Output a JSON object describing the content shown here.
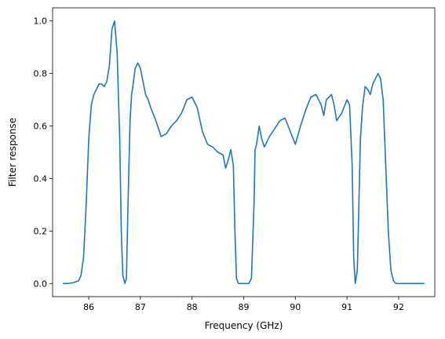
{
  "chart_data": {
    "type": "line",
    "title": "",
    "xlabel": "Frequency (GHz)",
    "ylabel": "Filter response",
    "xlim": [
      85.3,
      92.7
    ],
    "ylim": [
      -0.05,
      1.05
    ],
    "xticks": [
      86,
      87,
      88,
      89,
      90,
      91,
      92
    ],
    "yticks": [
      0.0,
      0.2,
      0.4,
      0.6,
      0.8,
      1.0
    ],
    "xtick_labels": [
      "86",
      "87",
      "88",
      "89",
      "90",
      "91",
      "92"
    ],
    "ytick_labels": [
      "0.0",
      "0.2",
      "0.4",
      "0.6",
      "0.8",
      "1.0"
    ],
    "grid": false,
    "series": [
      {
        "color": "#1f77b4",
        "x": [
          85.5,
          85.6,
          85.7,
          85.8,
          85.85,
          85.9,
          85.95,
          86.0,
          86.05,
          86.1,
          86.15,
          86.2,
          86.25,
          86.3,
          86.35,
          86.4,
          86.45,
          86.5,
          86.55,
          86.6,
          86.63,
          86.66,
          86.7,
          86.73,
          86.76,
          86.8,
          86.83,
          86.86,
          86.9,
          86.95,
          87.0,
          87.05,
          87.1,
          87.15,
          87.2,
          87.3,
          87.4,
          87.5,
          87.6,
          87.7,
          87.8,
          87.9,
          88.0,
          88.1,
          88.2,
          88.3,
          88.4,
          88.5,
          88.6,
          88.65,
          88.7,
          88.75,
          88.8,
          88.83,
          88.86,
          88.9,
          89.0,
          89.1,
          89.15,
          89.2,
          89.22,
          89.25,
          89.3,
          89.35,
          89.4,
          89.5,
          89.6,
          89.7,
          89.8,
          89.9,
          90.0,
          90.1,
          90.2,
          90.3,
          90.4,
          90.5,
          90.55,
          90.6,
          90.7,
          90.75,
          90.8,
          90.9,
          91.0,
          91.05,
          91.1,
          91.13,
          91.16,
          91.2,
          91.23,
          91.26,
          91.3,
          91.35,
          91.4,
          91.45,
          91.5,
          91.55,
          91.6,
          91.65,
          91.7,
          91.75,
          91.8,
          91.85,
          91.9,
          91.95,
          92.0,
          92.05,
          92.1,
          92.2,
          92.3,
          92.5
        ],
        "y": [
          0.0,
          0.0,
          0.003,
          0.01,
          0.03,
          0.1,
          0.3,
          0.55,
          0.68,
          0.72,
          0.74,
          0.76,
          0.76,
          0.75,
          0.77,
          0.83,
          0.97,
          1.0,
          0.88,
          0.55,
          0.2,
          0.03,
          0.0,
          0.02,
          0.3,
          0.62,
          0.72,
          0.76,
          0.82,
          0.84,
          0.82,
          0.77,
          0.72,
          0.7,
          0.67,
          0.62,
          0.56,
          0.57,
          0.6,
          0.62,
          0.65,
          0.7,
          0.71,
          0.67,
          0.58,
          0.53,
          0.52,
          0.5,
          0.49,
          0.44,
          0.47,
          0.51,
          0.45,
          0.2,
          0.02,
          0.0,
          0.0,
          0.0,
          0.02,
          0.3,
          0.51,
          0.53,
          0.6,
          0.55,
          0.52,
          0.56,
          0.59,
          0.62,
          0.63,
          0.58,
          0.53,
          0.6,
          0.66,
          0.71,
          0.72,
          0.68,
          0.64,
          0.7,
          0.72,
          0.68,
          0.62,
          0.65,
          0.7,
          0.68,
          0.45,
          0.1,
          0.0,
          0.05,
          0.3,
          0.55,
          0.67,
          0.75,
          0.74,
          0.72,
          0.76,
          0.78,
          0.8,
          0.78,
          0.7,
          0.45,
          0.2,
          0.05,
          0.01,
          0.0,
          0.0,
          0.0,
          0.0,
          0.0,
          0.0,
          0.0
        ]
      }
    ]
  }
}
